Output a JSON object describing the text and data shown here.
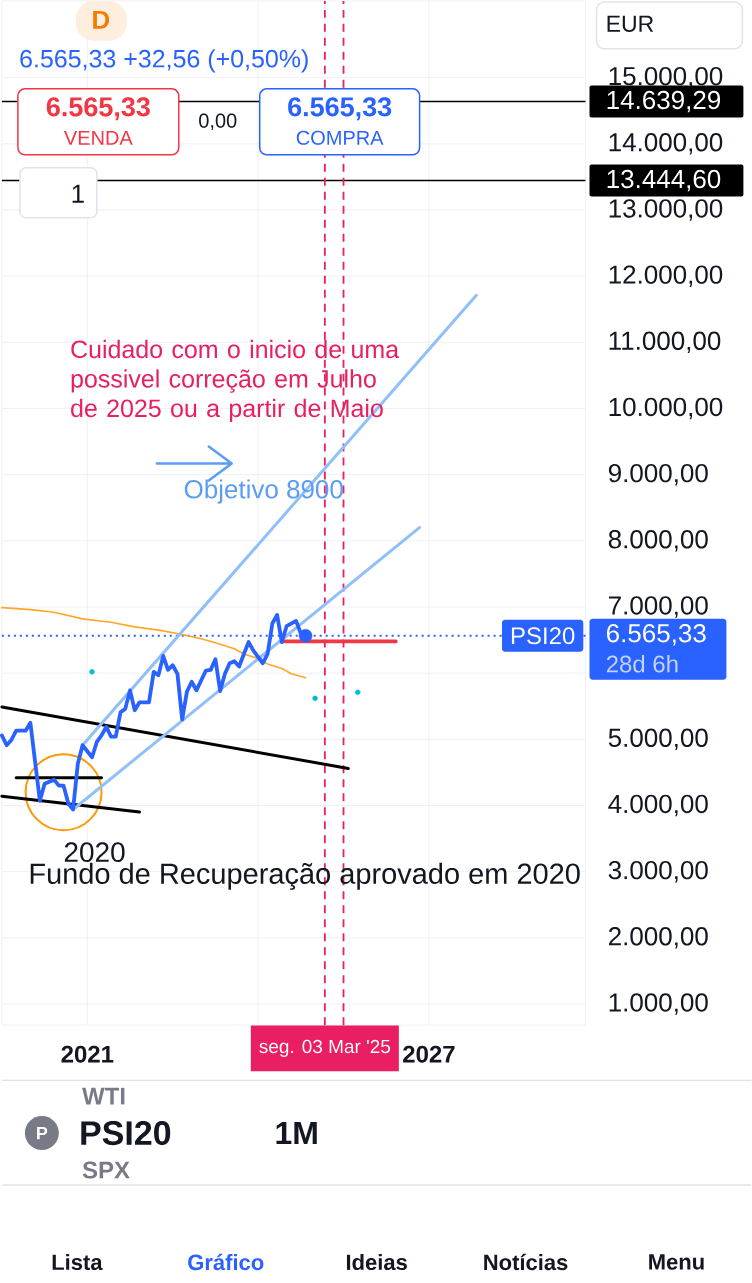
{
  "chart_data": {
    "type": "line",
    "title": "PSI20",
    "subtitle": "6.565,33 +32,56 (+0,50%)",
    "xlim": [
      "2019-07",
      "2029-10"
    ],
    "xticks": [
      {
        "value": "2021",
        "label": "2021"
      },
      {
        "value": "2024",
        "label": null
      },
      {
        "value": "2027",
        "label": "2027"
      }
    ],
    "ylim": [
      680,
      16160
    ],
    "yticks": [
      {
        "value": 1000,
        "label": "1.000,00"
      },
      {
        "value": 2000,
        "label": "2.000,00"
      },
      {
        "value": 3000,
        "label": "3.000,00"
      },
      {
        "value": 4000,
        "label": "4.000,00"
      },
      {
        "value": 5000,
        "label": "5.000,00"
      },
      {
        "value": 6000,
        "label": null
      },
      {
        "value": 7000,
        "label": "7.000,00"
      },
      {
        "value": 8000,
        "label": "8.000,00"
      },
      {
        "value": 9000,
        "label": "9.000,00"
      },
      {
        "value": 10000,
        "label": "10.000,00"
      },
      {
        "value": 11000,
        "label": "11.000,00"
      },
      {
        "value": 12000,
        "label": "12.000,00"
      },
      {
        "value": 13000,
        "label": "13.000,00"
      },
      {
        "value": 14000,
        "label": "14.000,00"
      },
      {
        "value": 15000,
        "label": "15.000,00"
      }
    ],
    "grid": true,
    "series": [
      {
        "color": "#000000",
        "x": [
          "2019-07",
          "2025-08"
        ],
        "values": [
          5490,
          4560
        ]
      },
      {
        "color": "#000000",
        "x": [
          "2019-07",
          "2021-12"
        ],
        "values": [
          4140,
          3900
        ]
      },
      {
        "color": "#000000",
        "x": [
          "2019-10",
          "2021-04"
        ],
        "values": [
          4420,
          4420
        ]
      },
      {
        "color": "#ffa726",
        "x": [
          "2019-07",
          "2020-01",
          "2020-06",
          "2020-12",
          "2021-06",
          "2021-11",
          "2022-04",
          "2022-08",
          "2023-01",
          "2023-04",
          "2023-08",
          "2023-10",
          "2024-01",
          "2024-03",
          "2024-06",
          "2024-08",
          "2024-11"
        ],
        "values": [
          6990,
          6960,
          6920,
          6820,
          6770,
          6700,
          6650,
          6600,
          6520,
          6460,
          6370,
          6290,
          6220,
          6140,
          6070,
          5990,
          5930
        ]
      },
      {
        "color": "#90bff9",
        "x": [
          "2020-12",
          "2027-11"
        ],
        "values": [
          4910,
          11710
        ]
      },
      {
        "color": "#90bff9",
        "x": [
          "2020-10",
          "2026-11"
        ],
        "values": [
          3940,
          8200
        ]
      },
      {
        "color": "#f23645",
        "x": [
          "2024-06",
          "2026-06"
        ],
        "values": [
          6480,
          6480
        ]
      },
      {
        "name": "PSI20",
        "color": "#2962ff",
        "x": [
          "2019-07",
          "2019-08",
          "2019-09",
          "2019-10",
          "2019-12",
          "2020-01",
          "2020-03",
          "2020-04",
          "2020-06",
          "2020-07",
          "2020-08",
          "2020-09",
          "2020-10",
          "2020-11",
          "2020-12",
          "2021-02",
          "2021-03",
          "2021-04",
          "2021-05",
          "2021-06",
          "2021-07",
          "2021-08",
          "2021-09",
          "2021-10",
          "2021-11",
          "2021-12",
          "2022-02",
          "2022-03",
          "2022-04",
          "2022-05",
          "2022-06",
          "2022-07",
          "2022-08",
          "2022-09",
          "2022-10",
          "2022-11",
          "2022-12",
          "2023-01",
          "2023-02",
          "2023-03",
          "2023-04",
          "2023-05",
          "2023-06",
          "2023-07",
          "2023-08",
          "2023-09",
          "2023-10",
          "2023-11",
          "2023-12",
          "2024-02",
          "2024-03",
          "2024-04",
          "2024-05",
          "2024-06",
          "2024-07",
          "2024-09",
          "2024-10",
          "2024-11"
        ],
        "values": [
          5060,
          4910,
          4990,
          5130,
          5130,
          5250,
          4070,
          4330,
          4390,
          4300,
          4300,
          4030,
          3940,
          4630,
          4910,
          4730,
          4960,
          5060,
          5190,
          5040,
          5040,
          5410,
          5460,
          5740,
          5440,
          5560,
          5560,
          6020,
          5970,
          6260,
          6050,
          6120,
          5990,
          5300,
          5720,
          5870,
          5740,
          5890,
          6040,
          6050,
          6210,
          5730,
          5990,
          6150,
          6180,
          6100,
          6290,
          6470,
          6340,
          6150,
          6290,
          6750,
          6880,
          6470,
          6710,
          6790,
          6600,
          6565.33
        ]
      },
      {
        "type": "scatter",
        "color": "#2962ff",
        "x": [
          "2024-11"
        ],
        "values": [
          6565.33
        ]
      },
      {
        "type": "scatter",
        "color": "#00bcd4",
        "x": [
          "2021-02",
          "2025-01",
          "2025-10"
        ],
        "values": [
          6020,
          5620,
          5710
        ]
      }
    ],
    "ref_lines": [
      {
        "axis": "y",
        "value": 14639.29,
        "label": "14.639,29",
        "color": "#000000"
      },
      {
        "axis": "y",
        "value": 13444.6,
        "label": "13.444,60",
        "color": "#000000"
      },
      {
        "axis": "y",
        "value": 6565.33,
        "label": "6.565,33",
        "color": "#2962ff",
        "line_style": "dotted"
      },
      {
        "axis": "x",
        "value": "2025-03-03",
        "label": "seg. 03 Mar '25",
        "color": "#e91e63",
        "line_style": "dashed"
      },
      {
        "axis": "x",
        "value": "2025-07",
        "color": "#e91e63",
        "line_style": "dashed"
      }
    ],
    "annotations": [
      {
        "text": "2020",
        "x": "2020-08",
        "y": 4200
      },
      "Fundo de Recuperação aprovado em 2020",
      "Cuidado com o inicio de uma possivel correção em Julho de 2025 ou a partir de Maio",
      "Objetivo 8900",
      "D",
      "6.565,33",
      "VENDA",
      "0,00",
      "6.565,33",
      "COMPRA",
      "1",
      "EUR",
      "28d 6h",
      "WTI",
      "P",
      "1M",
      "SPX",
      "Lista",
      "Gráfico",
      "Ideias",
      "Notícias",
      "Menu"
    ]
  }
}
